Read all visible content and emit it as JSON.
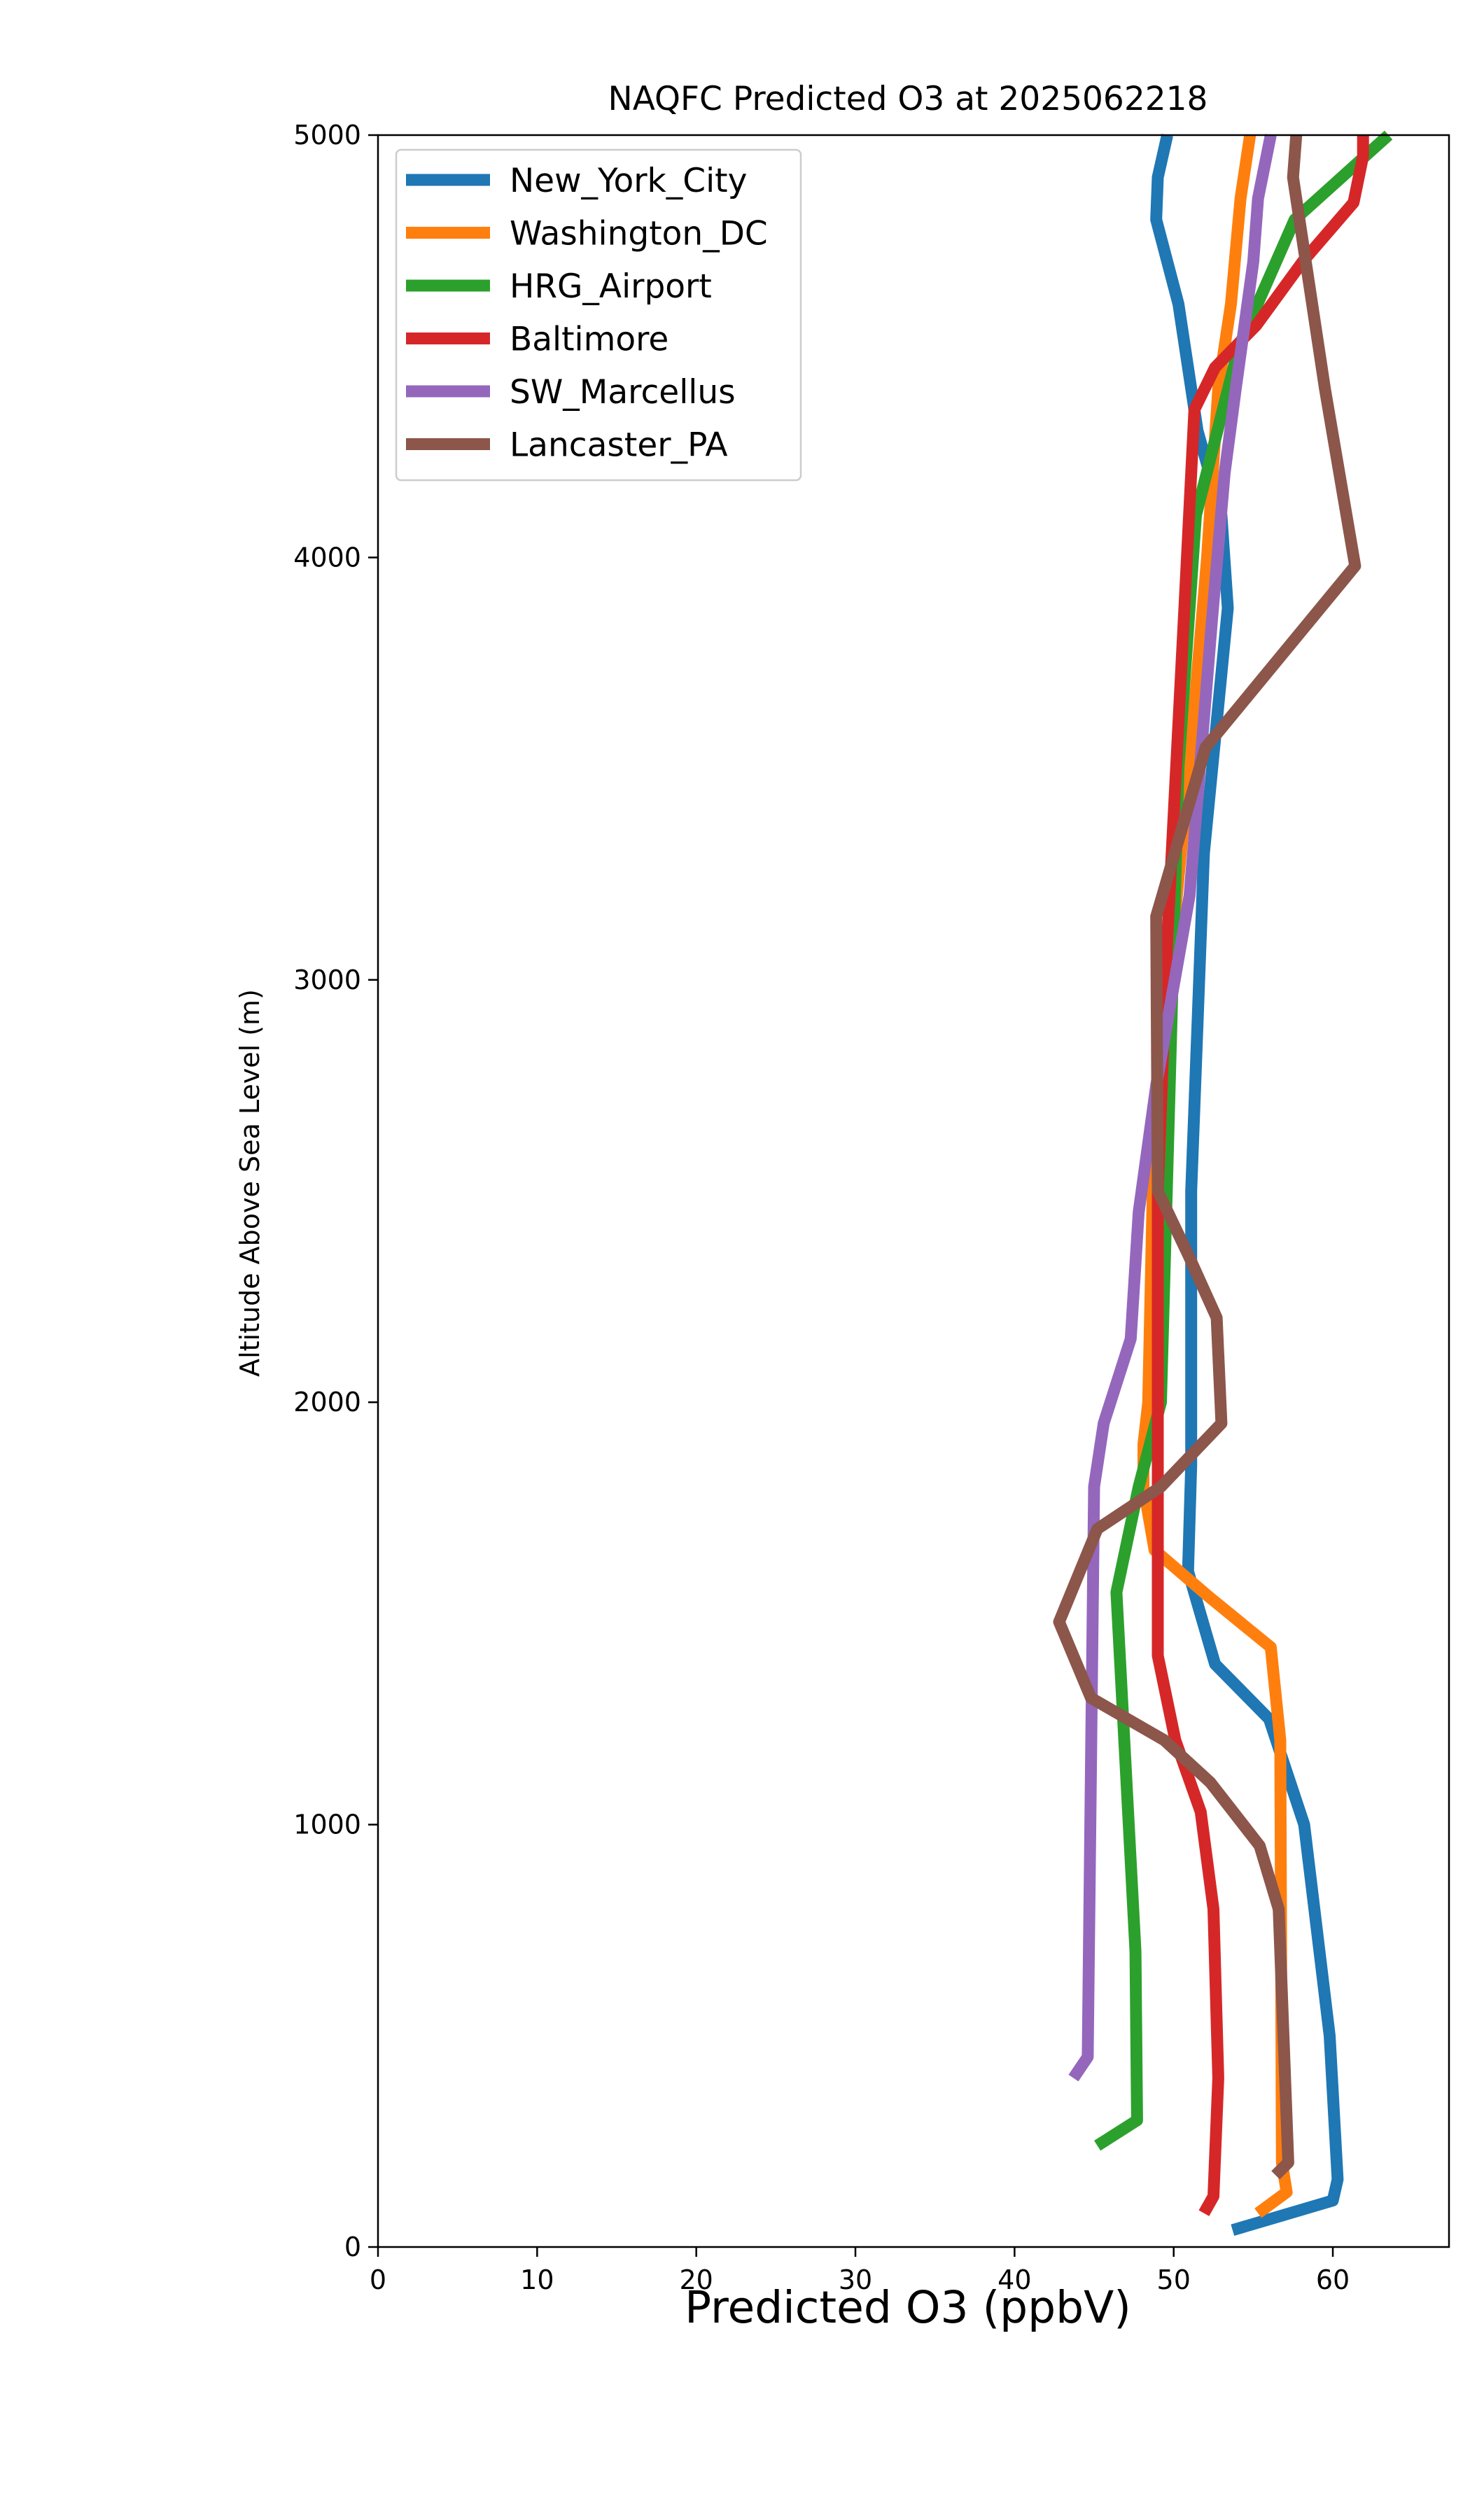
{
  "chart_data": {
    "type": "line",
    "title": "NAQFC Predicted O3 at 2025062218",
    "xlabel": "Predicted O3 (ppbV)",
    "ylabel": "Altitude Above Sea Level (m)",
    "xlim": [
      0,
      67.3
    ],
    "ylim": [
      0,
      5000
    ],
    "xticks": [
      0,
      10,
      20,
      30,
      40,
      50,
      60
    ],
    "yticks": [
      0,
      1000,
      2000,
      3000,
      4000,
      5000
    ],
    "grid": false,
    "legend_position": "upper-left",
    "series": [
      {
        "name": "New_York_City",
        "color": "#1f77b4",
        "points": [
          [
            53.7,
            40
          ],
          [
            60.0,
            110
          ],
          [
            60.3,
            160
          ],
          [
            59.8,
            500
          ],
          [
            58.2,
            1000
          ],
          [
            56.0,
            1250
          ],
          [
            52.6,
            1380
          ],
          [
            50.9,
            1600
          ],
          [
            51.1,
            1850
          ],
          [
            51.1,
            2500
          ],
          [
            51.3,
            2700
          ],
          [
            51.9,
            3300
          ],
          [
            53.4,
            3880
          ],
          [
            53.0,
            4100
          ],
          [
            51.5,
            4300
          ],
          [
            50.3,
            4600
          ],
          [
            48.9,
            4800
          ],
          [
            49.0,
            4900
          ],
          [
            49.6,
            5000
          ]
        ]
      },
      {
        "name": "Washington_DC",
        "color": "#ff7f0e",
        "points": [
          [
            55.3,
            80
          ],
          [
            57.1,
            130
          ],
          [
            56.8,
            200
          ],
          [
            56.7,
            1200
          ],
          [
            56.1,
            1420
          ],
          [
            52.2,
            1540
          ],
          [
            48.8,
            1650
          ],
          [
            48.1,
            1800
          ],
          [
            48.1,
            1900
          ],
          [
            48.4,
            2000
          ],
          [
            48.8,
            2700
          ],
          [
            49.2,
            2800
          ],
          [
            51.2,
            3600
          ],
          [
            52.1,
            4000
          ],
          [
            52.8,
            4400
          ],
          [
            53.6,
            4600
          ],
          [
            54.2,
            4850
          ],
          [
            54.8,
            5000
          ]
        ]
      },
      {
        "name": "HRG_Airport",
        "color": "#2ca02c",
        "points": [
          [
            45.2,
            240
          ],
          [
            47.7,
            300
          ],
          [
            47.6,
            700
          ],
          [
            46.4,
            1550
          ],
          [
            47.8,
            1800
          ],
          [
            49.2,
            2000
          ],
          [
            50.3,
            3500
          ],
          [
            51.4,
            4100
          ],
          [
            54.1,
            4500
          ],
          [
            57.6,
            4800
          ],
          [
            63.5,
            5000
          ]
        ]
      },
      {
        "name": "Baltimore",
        "color": "#d62728",
        "points": [
          [
            51.9,
            80
          ],
          [
            52.5,
            120
          ],
          [
            52.8,
            400
          ],
          [
            52.5,
            800
          ],
          [
            51.7,
            1030
          ],
          [
            50.1,
            1200
          ],
          [
            49.0,
            1400
          ],
          [
            49.0,
            2500
          ],
          [
            49.6,
            3100
          ],
          [
            50.7,
            3900
          ],
          [
            51.3,
            4350
          ],
          [
            52.6,
            4450
          ],
          [
            55.2,
            4550
          ],
          [
            58.1,
            4700
          ],
          [
            61.3,
            4840
          ],
          [
            61.9,
            4950
          ],
          [
            61.9,
            5000
          ]
        ]
      },
      {
        "name": "SW_Marcellus",
        "color": "#9467bd",
        "points": [
          [
            43.7,
            400
          ],
          [
            44.6,
            450
          ],
          [
            45.0,
            1800
          ],
          [
            45.6,
            1950
          ],
          [
            47.3,
            2150
          ],
          [
            47.8,
            2450
          ],
          [
            48.9,
            2750
          ],
          [
            51.0,
            3200
          ],
          [
            52.4,
            3850
          ],
          [
            53.2,
            4200
          ],
          [
            53.9,
            4400
          ],
          [
            55.0,
            4700
          ],
          [
            55.3,
            4850
          ],
          [
            56.1,
            5000
          ]
        ]
      },
      {
        "name": "Lancaster_PA",
        "color": "#8c564b",
        "points": [
          [
            56.4,
            170
          ],
          [
            57.2,
            200
          ],
          [
            56.6,
            800
          ],
          [
            55.4,
            950
          ],
          [
            52.3,
            1100
          ],
          [
            49.4,
            1200
          ],
          [
            44.8,
            1300
          ],
          [
            42.8,
            1480
          ],
          [
            45.2,
            1700
          ],
          [
            49.2,
            1800
          ],
          [
            53.0,
            1950
          ],
          [
            52.7,
            2200
          ],
          [
            50.9,
            2350
          ],
          [
            49.0,
            2500
          ],
          [
            48.9,
            3150
          ],
          [
            52.0,
            3550
          ],
          [
            61.4,
            3980
          ],
          [
            59.5,
            4400
          ],
          [
            57.5,
            4900
          ],
          [
            57.7,
            5000
          ]
        ]
      }
    ]
  }
}
